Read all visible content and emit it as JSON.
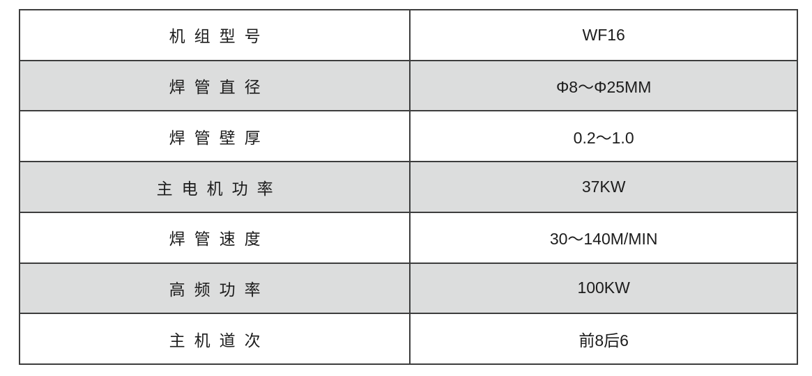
{
  "table": {
    "rows": [
      {
        "label": "机组型号",
        "value": "WF16"
      },
      {
        "label": "焊管直径",
        "value": "Φ8～Φ25MM"
      },
      {
        "label": "焊管壁厚",
        "value": "0.2～1.0"
      },
      {
        "label": "主电机功率",
        "value": "37KW"
      },
      {
        "label": "焊管速度",
        "value": "30～140M/MIN"
      },
      {
        "label": "高频功率",
        "value": "100KW"
      },
      {
        "label": "主机道次",
        "value": "前8后6"
      }
    ],
    "colors": {
      "stripe_bg": "#dcdddd",
      "border": "#3d3d3d",
      "text": "#1c1c1c",
      "page_bg": "#ffffff"
    }
  }
}
